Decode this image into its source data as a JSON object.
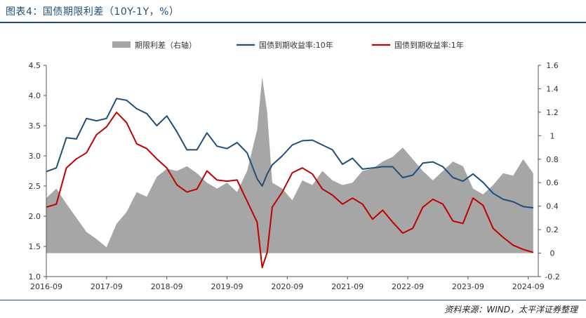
{
  "header": {
    "title": "图表4：国债期限利差（10Y-1Y，%）"
  },
  "footer": {
    "source": "资料来源：WIND，太平洋证券整理"
  },
  "chart_data": {
    "type": "line",
    "x_ticks": [
      "2016-09",
      "2017-09",
      "2018-09",
      "2019-09",
      "2020-09",
      "2021-09",
      "2022-09",
      "2023-09",
      "2024-09"
    ],
    "y_left": {
      "min": 1.0,
      "max": 4.5,
      "ticks": [
        "1.0",
        "1.5",
        "2.0",
        "2.5",
        "3.0",
        "3.5",
        "4.0",
        "4.5"
      ]
    },
    "y_right": {
      "min": -0.2,
      "max": 1.6,
      "ticks": [
        "-0.2",
        "0",
        "0.2",
        "0.4",
        "0.6",
        "0.8",
        "1",
        "1.2",
        "1.4",
        "1.6"
      ]
    },
    "legend_position": "top",
    "series": [
      {
        "name": "期限利差（右轴）",
        "type": "area",
        "axis": "right",
        "color": "#a6a6a6",
        "points": [
          [
            "2016-09",
            0.47
          ],
          [
            "2016-11",
            0.55
          ],
          [
            "2017-01",
            0.42
          ],
          [
            "2017-03",
            0.3
          ],
          [
            "2017-05",
            0.18
          ],
          [
            "2017-07",
            0.12
          ],
          [
            "2017-09",
            0.05
          ],
          [
            "2017-11",
            0.25
          ],
          [
            "2018-01",
            0.35
          ],
          [
            "2018-03",
            0.52
          ],
          [
            "2018-05",
            0.48
          ],
          [
            "2018-07",
            0.65
          ],
          [
            "2018-09",
            0.72
          ],
          [
            "2018-11",
            0.7
          ],
          [
            "2019-01",
            0.74
          ],
          [
            "2019-03",
            0.68
          ],
          [
            "2019-05",
            0.6
          ],
          [
            "2019-07",
            0.55
          ],
          [
            "2019-09",
            0.6
          ],
          [
            "2019-11",
            0.52
          ],
          [
            "2020-01",
            0.7
          ],
          [
            "2020-03",
            1.05
          ],
          [
            "2020-04",
            1.5
          ],
          [
            "2020-05",
            1.2
          ],
          [
            "2020-06",
            0.6
          ],
          [
            "2020-08",
            0.55
          ],
          [
            "2020-10",
            0.45
          ],
          [
            "2020-12",
            0.62
          ],
          [
            "2021-02",
            0.58
          ],
          [
            "2021-04",
            0.7
          ],
          [
            "2021-06",
            0.62
          ],
          [
            "2021-08",
            0.58
          ],
          [
            "2021-10",
            0.6
          ],
          [
            "2021-12",
            0.7
          ],
          [
            "2022-02",
            0.72
          ],
          [
            "2022-04",
            0.78
          ],
          [
            "2022-06",
            0.82
          ],
          [
            "2022-08",
            0.9
          ],
          [
            "2022-10",
            0.8
          ],
          [
            "2022-12",
            0.7
          ],
          [
            "2023-02",
            0.62
          ],
          [
            "2023-04",
            0.7
          ],
          [
            "2023-06",
            0.78
          ],
          [
            "2023-08",
            0.74
          ],
          [
            "2023-10",
            0.55
          ],
          [
            "2023-12",
            0.5
          ],
          [
            "2024-02",
            0.58
          ],
          [
            "2024-04",
            0.68
          ],
          [
            "2024-06",
            0.66
          ],
          [
            "2024-08",
            0.8
          ],
          [
            "2024-10",
            0.68
          ]
        ]
      },
      {
        "name": "国债到期收益率:10年",
        "type": "line",
        "axis": "left",
        "color": "#1f4e79",
        "points": [
          [
            "2016-09",
            2.74
          ],
          [
            "2016-11",
            2.8
          ],
          [
            "2017-01",
            3.3
          ],
          [
            "2017-03",
            3.28
          ],
          [
            "2017-05",
            3.62
          ],
          [
            "2017-07",
            3.58
          ],
          [
            "2017-09",
            3.62
          ],
          [
            "2017-11",
            3.95
          ],
          [
            "2018-01",
            3.92
          ],
          [
            "2018-03",
            3.78
          ],
          [
            "2018-05",
            3.7
          ],
          [
            "2018-07",
            3.5
          ],
          [
            "2018-09",
            3.66
          ],
          [
            "2018-11",
            3.4
          ],
          [
            "2019-01",
            3.1
          ],
          [
            "2019-03",
            3.1
          ],
          [
            "2019-05",
            3.38
          ],
          [
            "2019-07",
            3.16
          ],
          [
            "2019-09",
            3.12
          ],
          [
            "2019-11",
            3.22
          ],
          [
            "2020-01",
            3.05
          ],
          [
            "2020-03",
            2.62
          ],
          [
            "2020-04",
            2.5
          ],
          [
            "2020-05",
            2.7
          ],
          [
            "2020-06",
            2.85
          ],
          [
            "2020-08",
            3.0
          ],
          [
            "2020-10",
            3.18
          ],
          [
            "2020-12",
            3.25
          ],
          [
            "2021-02",
            3.26
          ],
          [
            "2021-04",
            3.18
          ],
          [
            "2021-06",
            3.1
          ],
          [
            "2021-08",
            2.86
          ],
          [
            "2021-10",
            2.96
          ],
          [
            "2021-12",
            2.78
          ],
          [
            "2022-02",
            2.8
          ],
          [
            "2022-04",
            2.82
          ],
          [
            "2022-06",
            2.82
          ],
          [
            "2022-08",
            2.64
          ],
          [
            "2022-10",
            2.68
          ],
          [
            "2022-12",
            2.88
          ],
          [
            "2023-02",
            2.9
          ],
          [
            "2023-04",
            2.82
          ],
          [
            "2023-06",
            2.64
          ],
          [
            "2023-08",
            2.58
          ],
          [
            "2023-10",
            2.7
          ],
          [
            "2023-12",
            2.56
          ],
          [
            "2024-02",
            2.38
          ],
          [
            "2024-04",
            2.28
          ],
          [
            "2024-06",
            2.24
          ],
          [
            "2024-08",
            2.16
          ],
          [
            "2024-10",
            2.14
          ]
        ]
      },
      {
        "name": "国债到期收益率:1年",
        "type": "line",
        "axis": "left",
        "color": "#c00000",
        "points": [
          [
            "2016-09",
            2.15
          ],
          [
            "2016-11",
            2.2
          ],
          [
            "2017-01",
            2.8
          ],
          [
            "2017-03",
            2.95
          ],
          [
            "2017-05",
            3.05
          ],
          [
            "2017-07",
            3.35
          ],
          [
            "2017-09",
            3.48
          ],
          [
            "2017-11",
            3.72
          ],
          [
            "2018-01",
            3.55
          ],
          [
            "2018-03",
            3.2
          ],
          [
            "2018-05",
            3.12
          ],
          [
            "2018-07",
            2.95
          ],
          [
            "2018-09",
            2.8
          ],
          [
            "2018-11",
            2.52
          ],
          [
            "2019-01",
            2.4
          ],
          [
            "2019-03",
            2.45
          ],
          [
            "2019-05",
            2.75
          ],
          [
            "2019-07",
            2.6
          ],
          [
            "2019-09",
            2.58
          ],
          [
            "2019-11",
            2.6
          ],
          [
            "2020-01",
            2.25
          ],
          [
            "2020-03",
            1.9
          ],
          [
            "2020-04",
            1.15
          ],
          [
            "2020-05",
            1.4
          ],
          [
            "2020-06",
            2.15
          ],
          [
            "2020-08",
            2.4
          ],
          [
            "2020-10",
            2.72
          ],
          [
            "2020-12",
            2.8
          ],
          [
            "2021-02",
            2.7
          ],
          [
            "2021-04",
            2.45
          ],
          [
            "2021-06",
            2.35
          ],
          [
            "2021-08",
            2.2
          ],
          [
            "2021-10",
            2.3
          ],
          [
            "2021-12",
            2.2
          ],
          [
            "2022-02",
            1.95
          ],
          [
            "2022-04",
            2.1
          ],
          [
            "2022-06",
            1.9
          ],
          [
            "2022-08",
            1.72
          ],
          [
            "2022-10",
            1.8
          ],
          [
            "2022-12",
            2.15
          ],
          [
            "2023-02",
            2.28
          ],
          [
            "2023-04",
            2.2
          ],
          [
            "2023-06",
            1.92
          ],
          [
            "2023-08",
            1.88
          ],
          [
            "2023-10",
            2.3
          ],
          [
            "2023-12",
            2.18
          ],
          [
            "2024-02",
            1.8
          ],
          [
            "2024-04",
            1.65
          ],
          [
            "2024-06",
            1.52
          ],
          [
            "2024-08",
            1.45
          ],
          [
            "2024-10",
            1.4
          ]
        ]
      }
    ]
  }
}
